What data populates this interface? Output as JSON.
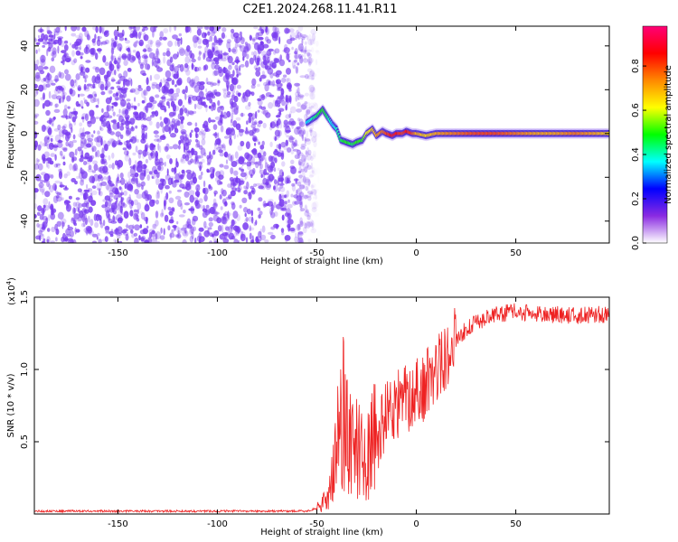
{
  "title": "C2E1.2024.268.11.41.R11",
  "colors": {
    "snr_line": "#ee2222",
    "spectrogram_noise": "#7a3cf0",
    "axis": "#000000"
  },
  "chart_data": [
    {
      "type": "heatmap",
      "name": "spectrogram",
      "xlabel": "Height of straight line (km)",
      "ylabel": "Frequency (Hz)",
      "xlim": [
        -192,
        97
      ],
      "ylim": [
        -50,
        49
      ],
      "xticks": [
        -150,
        -100,
        -50,
        0,
        50
      ],
      "yticks": [
        -40,
        -20,
        0,
        20,
        40
      ],
      "colorbar": {
        "label": "Normalized spectral amplitude",
        "range": [
          0.0,
          0.98
        ],
        "ticks": [
          0.0,
          0.2,
          0.4,
          0.6,
          0.8
        ],
        "tick_labels": [
          "0.0",
          "0.2",
          "0.4",
          "0.6",
          "0.8"
        ],
        "colormap": [
          "#ffffff",
          "#8a2be2",
          "#0000ff",
          "#00ffff",
          "#00ff00",
          "#ffff00",
          "#ff8800",
          "#ff0000",
          "#ff0077"
        ]
      },
      "noise_region_x": [
        -192,
        -55
      ],
      "signal_trace": {
        "x": [
          -55,
          -50,
          -47,
          -45,
          -42,
          -40,
          -38,
          -35,
          -32,
          -30,
          -27,
          -25,
          -22,
          -20,
          -17,
          -15,
          -12,
          -10,
          -7,
          -5,
          -2,
          0,
          5,
          10,
          20,
          30,
          40,
          50,
          60,
          70,
          80,
          90,
          97
        ],
        "y": [
          5,
          8,
          11,
          8,
          4,
          2,
          -3,
          -4,
          -5,
          -4,
          -3,
          0,
          2,
          -1,
          1,
          0,
          -1,
          0,
          0,
          1,
          0,
          0,
          -1,
          0,
          0,
          0,
          0,
          0,
          0,
          0,
          0,
          0,
          0
        ],
        "amplitude": [
          0.35,
          0.45,
          0.5,
          0.45,
          0.35,
          0.4,
          0.45,
          0.5,
          0.45,
          0.5,
          0.5,
          0.6,
          0.65,
          0.7,
          0.75,
          0.8,
          0.85,
          0.85,
          0.8,
          0.85,
          0.8,
          0.7,
          0.65,
          0.7,
          0.75,
          0.8,
          0.8,
          0.75,
          0.7,
          0.7,
          0.75,
          0.7,
          0.65
        ]
      }
    },
    {
      "type": "line",
      "name": "snr",
      "xlabel": "Height of straight line (km)",
      "ylabel": "SNR (10 * v/v)",
      "multiplier_label": "(x10",
      "multiplier_exp": "4",
      "xlim": [
        -192,
        97
      ],
      "ylim": [
        0,
        1.5
      ],
      "xticks": [
        -150,
        -100,
        -50,
        0,
        50
      ],
      "yticks": [
        0.5,
        1.0,
        1.5
      ],
      "ytick_labels": [
        "0.5",
        "1.0",
        "1.5"
      ],
      "series": [
        {
          "x": [
            -192,
            -150,
            -100,
            -55,
            -50,
            -45,
            -40,
            -38,
            -35,
            -32,
            -30,
            -27,
            -25,
            -22,
            -20,
            -15,
            -10,
            -5,
            0,
            5,
            10,
            15,
            20,
            25,
            30,
            35,
            40,
            50,
            60,
            70,
            80,
            90,
            97
          ],
          "y": [
            0.02,
            0.02,
            0.02,
            0.02,
            0.04,
            0.1,
            0.4,
            0.8,
            0.6,
            0.5,
            0.45,
            0.4,
            0.4,
            0.5,
            0.5,
            0.7,
            0.75,
            0.8,
            0.85,
            0.9,
            1.0,
            1.1,
            1.2,
            1.28,
            1.32,
            1.36,
            1.38,
            1.4,
            1.38,
            1.38,
            1.37,
            1.38,
            1.38
          ]
        }
      ]
    }
  ]
}
